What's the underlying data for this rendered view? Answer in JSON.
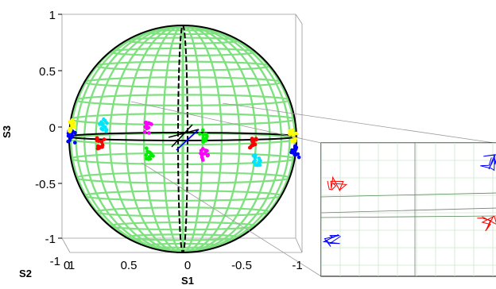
{
  "chart_data": {
    "type": "scatter",
    "description_3d": true,
    "axes": {
      "s3": {
        "label": "S3",
        "ticks": [
          "1",
          "0.5",
          "0",
          "-0.5",
          "-1"
        ],
        "range": [
          -1,
          1
        ]
      },
      "s1": {
        "label": "S1",
        "ticks": [
          "1",
          "0.5",
          "0",
          "-0.5",
          "-1"
        ],
        "range": [
          1,
          -1
        ]
      },
      "s2": {
        "label": "S2",
        "ticks": [
          "-1",
          "0",
          "1"
        ],
        "range": [
          -1,
          1
        ]
      }
    },
    "sphere": {
      "color": "#7fe07f",
      "grid": true,
      "equator_color": "#000000"
    },
    "clusters": [
      {
        "color": "#0000ff",
        "s1": 0.98,
        "s3": 0.02
      },
      {
        "color": "#ffff00",
        "s1": 0.97,
        "s3": 0.12
      },
      {
        "color": "#00e5ff",
        "s1": 0.7,
        "s3": 0.12
      },
      {
        "color": "#ff0000",
        "s1": 0.72,
        "s3": -0.03
      },
      {
        "color": "#ff00ff",
        "s1": 0.3,
        "s3": 0.09
      },
      {
        "color": "#00ee00",
        "s1": 0.29,
        "s3": -0.13
      },
      {
        "color": "#00ee00",
        "s1": -0.18,
        "s3": 0.03
      },
      {
        "color": "#ff00ff",
        "s1": -0.19,
        "s3": -0.14
      },
      {
        "color": "#ff0000",
        "s1": -0.62,
        "s3": -0.05
      },
      {
        "color": "#00e5ff",
        "s1": -0.65,
        "s3": -0.18
      },
      {
        "color": "#ffff00",
        "s1": -0.97,
        "s3": 0.03
      },
      {
        "color": "#0000ff",
        "s1": -0.99,
        "s3": -0.12
      }
    ],
    "inset": {
      "description": "zoomed detail view",
      "traces": [
        {
          "color": "#ff0000"
        },
        {
          "color": "#0000ff"
        },
        {
          "color": "#ff0000"
        },
        {
          "color": "#0000ff"
        }
      ]
    }
  }
}
